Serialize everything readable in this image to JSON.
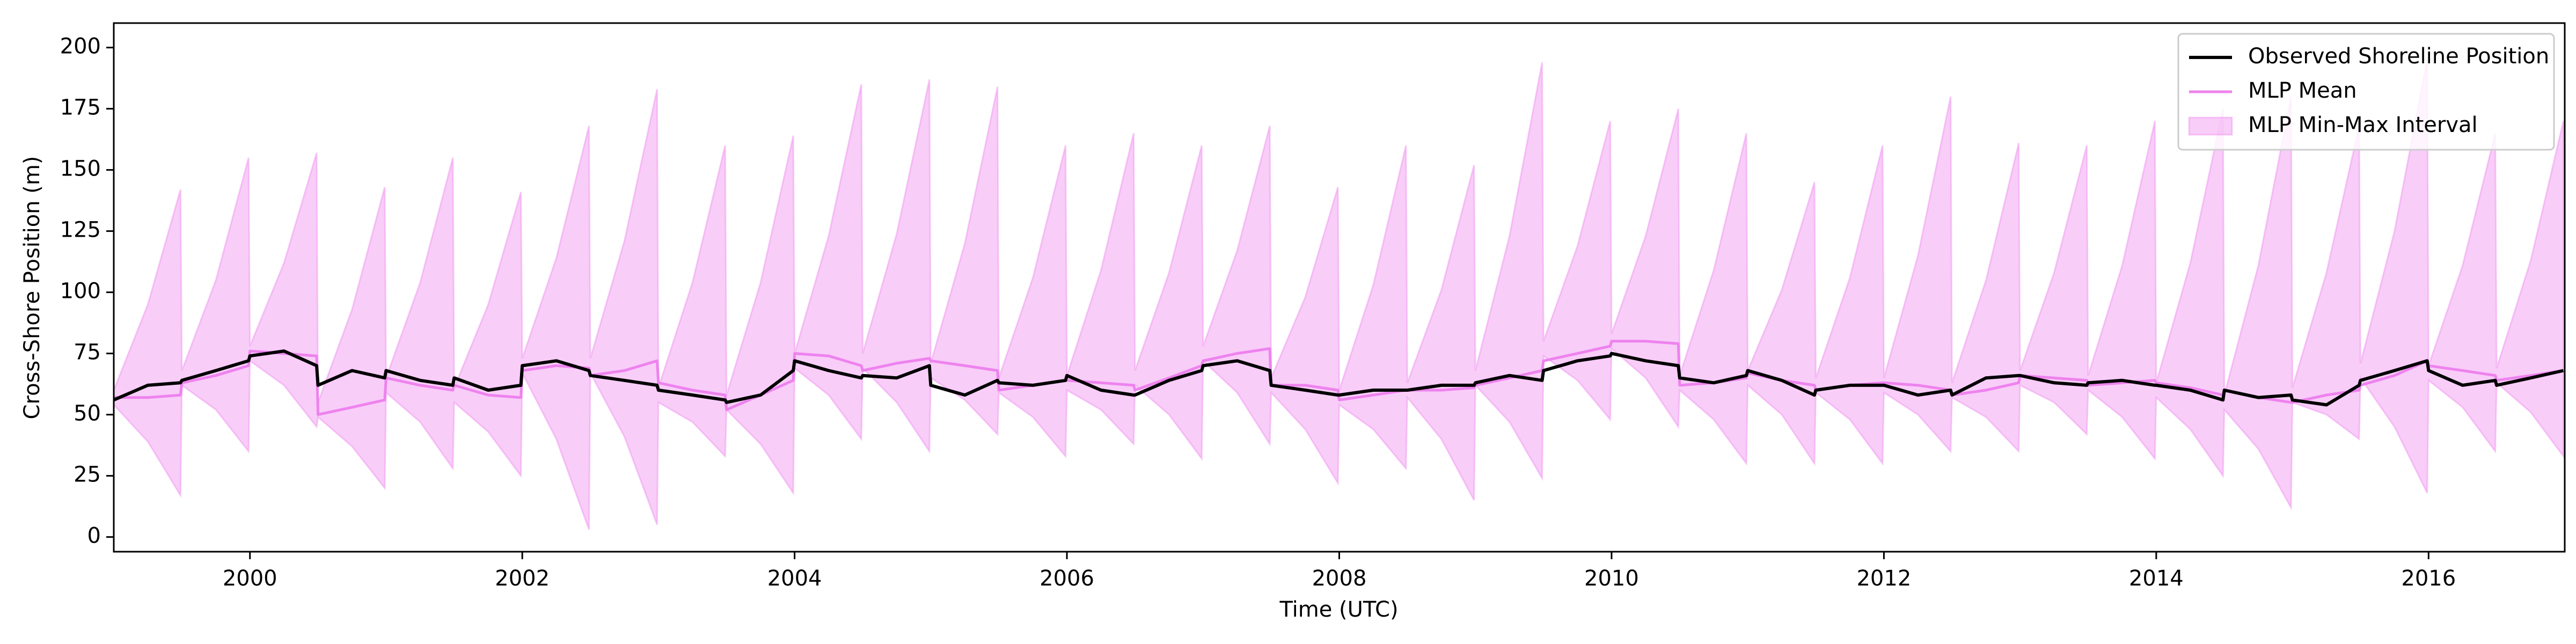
{
  "chart_data": {
    "type": "line",
    "xlabel": "Time (UTC)",
    "ylabel": "Cross-Shore Position (m)",
    "xlim": [
      1999.0,
      2017.0
    ],
    "xticks": [
      2000,
      2002,
      2004,
      2006,
      2008,
      2010,
      2012,
      2014,
      2016
    ],
    "ylim": [
      -6,
      210
    ],
    "yticks": [
      0,
      25,
      50,
      75,
      100,
      125,
      150,
      175,
      200
    ],
    "legend": "upper right",
    "x": [
      1999,
      1999.25,
      1999.49,
      1999.5,
      1999.75,
      1999.99,
      2000,
      2000.25,
      2000.49,
      2000.5,
      2000.75,
      2000.99,
      2001,
      2001.25,
      2001.49,
      2001.5,
      2001.75,
      2001.99,
      2002,
      2002.25,
      2002.49,
      2002.5,
      2002.75,
      2002.99,
      2003,
      2003.25,
      2003.49,
      2003.5,
      2003.75,
      2003.99,
      2004,
      2004.25,
      2004.49,
      2004.5,
      2004.75,
      2004.99,
      2005,
      2005.25,
      2005.49,
      2005.5,
      2005.75,
      2005.99,
      2006,
      2006.25,
      2006.49,
      2006.5,
      2006.75,
      2006.99,
      2007,
      2007.25,
      2007.49,
      2007.5,
      2007.75,
      2007.99,
      2008,
      2008.25,
      2008.49,
      2008.5,
      2008.75,
      2008.99,
      2009,
      2009.25,
      2009.49,
      2009.5,
      2009.75,
      2009.99,
      2010,
      2010.25,
      2010.49,
      2010.5,
      2010.75,
      2010.99,
      2011,
      2011.25,
      2011.49,
      2011.5,
      2011.75,
      2011.99,
      2012,
      2012.25,
      2012.49,
      2012.5,
      2012.75,
      2012.99,
      2013,
      2013.25,
      2013.49,
      2013.5,
      2013.75,
      2013.99,
      2014,
      2014.25,
      2014.49,
      2014.5,
      2014.75,
      2014.99,
      2015,
      2015.25,
      2015.49,
      2015.5,
      2015.75,
      2015.99,
      2016,
      2016.25,
      2016.49,
      2016.5,
      2016.75,
      2016.99
    ],
    "band": {
      "name": "MLP Min-Max Interval",
      "color": "#ee82ee",
      "alpha": 0.4,
      "upper": [
        60,
        95,
        142,
        68,
        105,
        155,
        78,
        112,
        157,
        55,
        93,
        143,
        65,
        104,
        155,
        61,
        95,
        141,
        73,
        114,
        168,
        73,
        121,
        183,
        61,
        104,
        160,
        58,
        104,
        164,
        75,
        123,
        185,
        75,
        124,
        187,
        71,
        120,
        184,
        65,
        106,
        160,
        66,
        109,
        165,
        68,
        108,
        160,
        78,
        117,
        168,
        65,
        98,
        143,
        60,
        103,
        160,
        63,
        101,
        152,
        68,
        123,
        194,
        80,
        119,
        170,
        83,
        123,
        175,
        66,
        109,
        165,
        68,
        101,
        145,
        65,
        106,
        160,
        65,
        115,
        180,
        63,
        105,
        161,
        68,
        108,
        160,
        66,
        111,
        170,
        63,
        112,
        175,
        58,
        111,
        180,
        61,
        108,
        168,
        71,
        125,
        195,
        70,
        111,
        165,
        69,
        113,
        170
      ],
      "lower": [
        54,
        39,
        17,
        62,
        52,
        35,
        72,
        62,
        45,
        49,
        37,
        20,
        59,
        47,
        28,
        55,
        43,
        25,
        67,
        40,
        3,
        67,
        41,
        5,
        55,
        47,
        33,
        52,
        38,
        18,
        69,
        58,
        40,
        69,
        55,
        35,
        65,
        56,
        42,
        59,
        49,
        33,
        60,
        52,
        38,
        62,
        50,
        32,
        72,
        59,
        38,
        59,
        44,
        22,
        54,
        44,
        28,
        57,
        40,
        15,
        62,
        47,
        24,
        74,
        64,
        48,
        77,
        65,
        45,
        60,
        48,
        30,
        62,
        50,
        30,
        59,
        48,
        30,
        59,
        50,
        35,
        57,
        49,
        35,
        62,
        55,
        42,
        60,
        49,
        32,
        57,
        44,
        25,
        52,
        36,
        12,
        55,
        50,
        40,
        65,
        45,
        18,
        64,
        53,
        35,
        63,
        51,
        33
      ]
    },
    "series": [
      {
        "name": "Observed Shoreline Position",
        "color": "#000000",
        "values": [
          56,
          62,
          63,
          64,
          68,
          72,
          74,
          76,
          70,
          62,
          68,
          65,
          68,
          64,
          62,
          65,
          60,
          62,
          70,
          72,
          68,
          66,
          64,
          62,
          60,
          58,
          56,
          55,
          58,
          68,
          72,
          68,
          65,
          66,
          65,
          70,
          62,
          58,
          64,
          63,
          62,
          64,
          66,
          60,
          58,
          58,
          64,
          68,
          70,
          72,
          68,
          62,
          60,
          58,
          58,
          60,
          60,
          60,
          62,
          62,
          63,
          66,
          64,
          68,
          72,
          74,
          75,
          72,
          70,
          65,
          63,
          66,
          68,
          64,
          58,
          60,
          62,
          62,
          62,
          58,
          60,
          58,
          65,
          66,
          66,
          63,
          62,
          63,
          64,
          62,
          62,
          60,
          56,
          60,
          57,
          58,
          56,
          54,
          62,
          64,
          68,
          72,
          68,
          62,
          64,
          62,
          65,
          68
        ]
      },
      {
        "name": "MLP Mean",
        "color": "#ee82ee",
        "values": [
          57,
          57,
          58,
          63,
          66,
          70,
          76,
          75,
          74,
          50,
          53,
          56,
          65,
          62,
          60,
          62,
          58,
          57,
          68,
          70,
          69,
          66,
          68,
          72,
          63,
          60,
          58,
          52,
          58,
          64,
          75,
          74,
          70,
          68,
          71,
          73,
          72,
          70,
          68,
          60,
          62,
          64,
          64,
          63,
          62,
          60,
          65,
          70,
          72,
          75,
          77,
          62,
          62,
          60,
          56,
          58,
          60,
          60,
          60,
          61,
          62,
          65,
          68,
          72,
          75,
          78,
          80,
          80,
          79,
          62,
          63,
          65,
          67,
          64,
          62,
          60,
          62,
          63,
          63,
          62,
          60,
          58,
          60,
          63,
          66,
          65,
          64,
          62,
          63,
          64,
          63,
          61,
          58,
          60,
          57,
          55,
          55,
          58,
          60,
          62,
          66,
          72,
          70,
          68,
          66,
          64,
          66,
          68
        ]
      }
    ]
  }
}
